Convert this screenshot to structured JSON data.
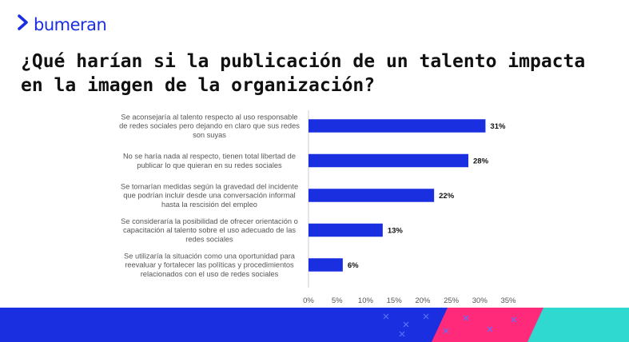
{
  "brand": {
    "logo_text": "bumeran",
    "logo_icon": "chevron-right-icon",
    "accent": "#1a2fe0"
  },
  "title": "¿Qué harían si la publicación de un talento impacta en la imagen de la organización?",
  "chart_data": {
    "type": "bar",
    "orientation": "horizontal",
    "categories": [
      [
        "Se aconsejaría al talento respecto al uso responsable",
        "de redes sociales pero dejando en claro que sus redes",
        "son suyas"
      ],
      [
        "No se haría nada al respecto, tienen total libertad de",
        "publicar lo que quieran en su redes sociales"
      ],
      [
        "Se tomarían medidas según la gravedad del incidente",
        "que podrían incluir desde una conversación informal",
        "hasta la rescisión del empleo"
      ],
      [
        "Se consideraría la posibilidad de ofrecer orientación o",
        "capacitación al talento sobre el uso adecuado de las",
        "redes sociales"
      ],
      [
        "Se utilizaría la situación como una oportunidad para",
        "reevaluar y fortalecer las políticas y procedimientos",
        "relacionados con el uso de redes sociales"
      ]
    ],
    "values": [
      31,
      28,
      22,
      13,
      6
    ],
    "value_labels": [
      "31%",
      "28%",
      "22%",
      "13%",
      "6%"
    ],
    "xlim": [
      0,
      35
    ],
    "ticks": [
      0,
      5,
      10,
      15,
      20,
      25,
      30,
      35
    ],
    "tick_labels": [
      "0%",
      "5%",
      "10%",
      "15%",
      "20%",
      "25%",
      "30%",
      "35%"
    ],
    "bar_color": "#1a2fe0",
    "grid": false,
    "legend": "none"
  },
  "footer_colors": {
    "primary": "#1a2fe0",
    "secondary": "#ff2a7a",
    "tertiary": "#2fd9d0"
  }
}
